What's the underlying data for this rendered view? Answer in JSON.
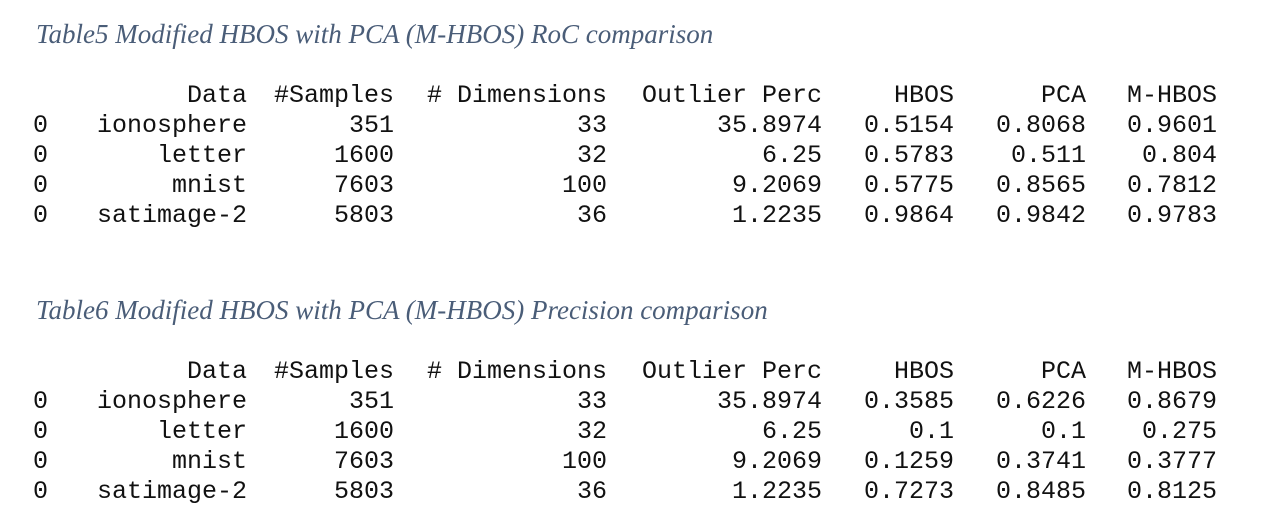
{
  "table5": {
    "caption": "Table5  Modified HBOS with PCA (M-HBOS) RoC comparison",
    "headers": [
      "Data",
      "#Samples",
      "# Dimensions",
      "Outlier Perc",
      "HBOS",
      "PCA",
      "M-HBOS"
    ],
    "rows": [
      {
        "index": "0",
        "data": "ionosphere",
        "samples": "351",
        "dimensions": "33",
        "outlier_perc": "35.8974",
        "hbos": "0.5154",
        "pca": "0.8068",
        "mhbos": "0.9601"
      },
      {
        "index": "0",
        "data": "letter",
        "samples": "1600",
        "dimensions": "32",
        "outlier_perc": "6.25",
        "hbos": "0.5783",
        "pca": "0.511",
        "mhbos": "0.804"
      },
      {
        "index": "0",
        "data": "mnist",
        "samples": "7603",
        "dimensions": "100",
        "outlier_perc": "9.2069",
        "hbos": "0.5775",
        "pca": "0.8565",
        "mhbos": "0.7812"
      },
      {
        "index": "0",
        "data": "satimage-2",
        "samples": "5803",
        "dimensions": "36",
        "outlier_perc": "1.2235",
        "hbos": "0.9864",
        "pca": "0.9842",
        "mhbos": "0.9783"
      }
    ]
  },
  "table6": {
    "caption": "Table6  Modified HBOS with PCA (M-HBOS) Precision comparison",
    "headers": [
      "Data",
      "#Samples",
      "# Dimensions",
      "Outlier Perc",
      "HBOS",
      "PCA",
      "M-HBOS"
    ],
    "rows": [
      {
        "index": "0",
        "data": "ionosphere",
        "samples": "351",
        "dimensions": "33",
        "outlier_perc": "35.8974",
        "hbos": "0.3585",
        "pca": "0.6226",
        "mhbos": "0.8679"
      },
      {
        "index": "0",
        "data": "letter",
        "samples": "1600",
        "dimensions": "32",
        "outlier_perc": "6.25",
        "hbos": "0.1",
        "pca": "0.1",
        "mhbos": "0.275"
      },
      {
        "index": "0",
        "data": "mnist",
        "samples": "7603",
        "dimensions": "100",
        "outlier_perc": "9.2069",
        "hbos": "0.1259",
        "pca": "0.3741",
        "mhbos": "0.3777"
      },
      {
        "index": "0",
        "data": "satimage-2",
        "samples": "5803",
        "dimensions": "36",
        "outlier_perc": "1.2235",
        "hbos": "0.7273",
        "pca": "0.8485",
        "mhbos": "0.8125"
      }
    ]
  }
}
